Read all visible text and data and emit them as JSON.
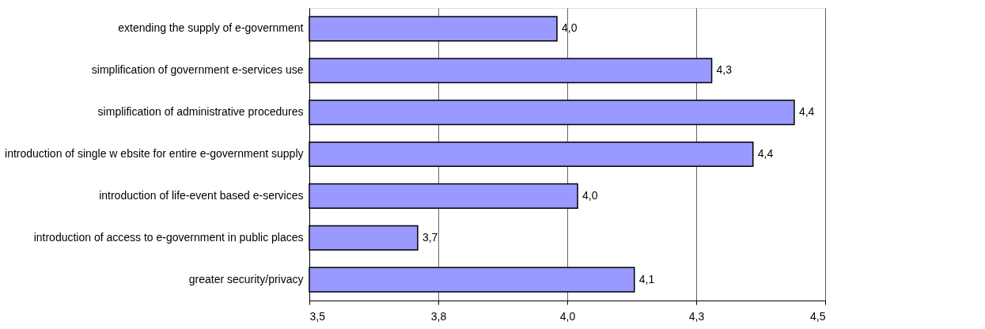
{
  "chart_data": {
    "type": "bar",
    "orientation": "horizontal",
    "categories": [
      "extending the supply of e-government",
      "simplification of government e-services use",
      "simplification of administrative procedures",
      "introduction of single w ebsite for entire e-government supply",
      "introduction of life-event based e-services",
      "introduction of access to e-government in public places",
      "greater security/privacy"
    ],
    "values": [
      3.98,
      4.28,
      4.44,
      4.36,
      4.02,
      3.71,
      4.13
    ],
    "value_labels": [
      "4,0",
      "4,3",
      "4,4",
      "4,4",
      "4,0",
      "3,7",
      "4,1"
    ],
    "color": "#9999ff",
    "xlim": [
      3.5,
      4.5
    ],
    "xticks": [
      {
        "value": 3.5,
        "label": "3,5"
      },
      {
        "value": 3.75,
        "label": "3,8"
      },
      {
        "value": 4.0,
        "label": "4,0"
      },
      {
        "value": 4.25,
        "label": "4,3"
      },
      {
        "value": 4.5,
        "label": "4,5"
      }
    ],
    "grid": "x"
  }
}
